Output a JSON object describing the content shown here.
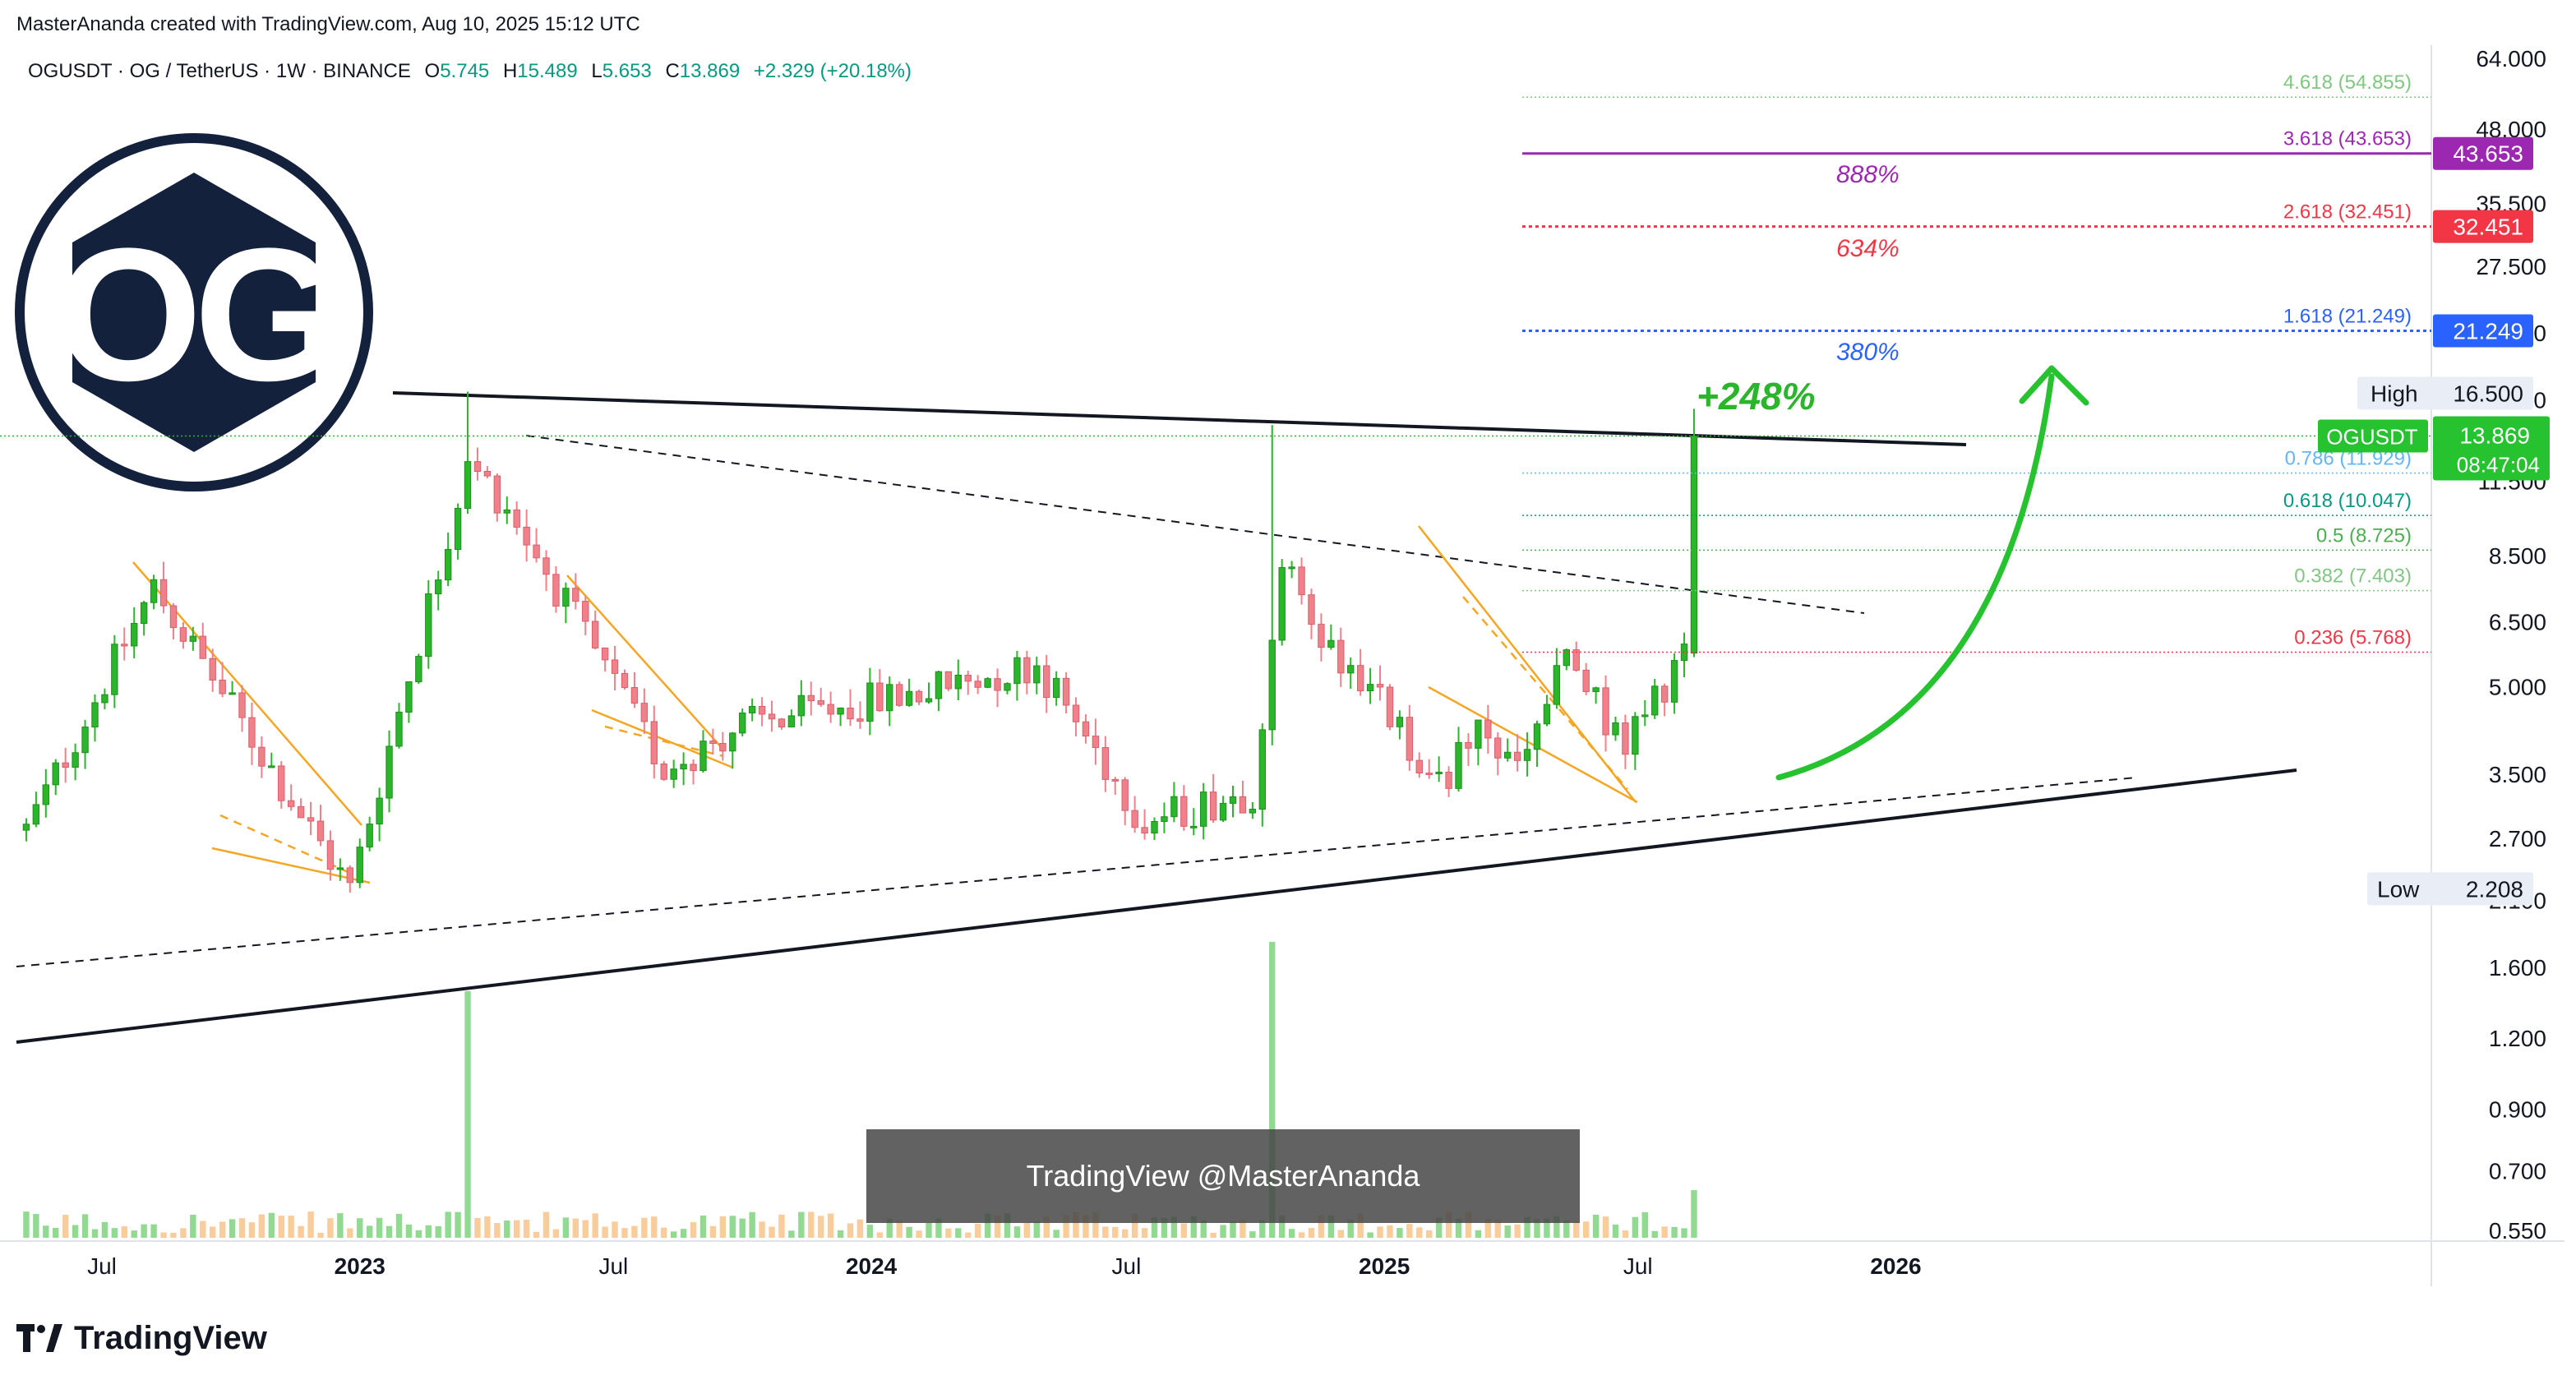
{
  "header": {
    "attribution": "MasterAnanda created with TradingView.com, Aug 10, 2025 15:12 UTC"
  },
  "legend": {
    "symbol_desc": "OGUSDT · OG / TetherUS · 1W · BINANCE",
    "o_label": "O",
    "o_value": "5.745",
    "h_label": "H",
    "h_value": "15.489",
    "l_label": "L",
    "l_value": "5.653",
    "c_label": "C",
    "c_value": "13.869",
    "change": "+2.329 (+20.18%)"
  },
  "logo": {
    "text": "OG"
  },
  "watermark": "TradingView @MasterAnanda",
  "footer": {
    "brand": "TradingView"
  },
  "colors": {
    "up": "#2bb52b",
    "down": "#f0808a",
    "vol_up": "#7fd27f",
    "vol_down": "#f7c48a",
    "purple": "#9c27b0",
    "red": "#f23645",
    "blue": "#2962ff",
    "green": "#089981",
    "orange": "#f5a623",
    "black": "#131722"
  },
  "chart_data": {
    "type": "candlestick",
    "scale": "log",
    "ylim": [
      0.55,
      64
    ],
    "xlim": [
      "2022-05-01",
      "2026-06-28"
    ],
    "y_ticks": [
      "64.000",
      "48.000",
      "35.500",
      "27.500",
      "21.000",
      "16.000",
      "11.500",
      "8.500",
      "6.500",
      "5.000",
      "3.500",
      "2.700",
      "2.100",
      "1.600",
      "1.200",
      "0.900",
      "0.700",
      "0.550"
    ],
    "y_tick_values": [
      64,
      48,
      35.5,
      27.5,
      21,
      16,
      11.5,
      8.5,
      6.5,
      5,
      3.5,
      2.7,
      2.1,
      1.6,
      1.2,
      0.9,
      0.7,
      0.55
    ],
    "x_ticks": [
      {
        "label": "Jul",
        "date": "2022-07-01"
      },
      {
        "label": "2023",
        "date": "2023-01-01"
      },
      {
        "label": "Jul",
        "date": "2023-07-01"
      },
      {
        "label": "2024",
        "date": "2024-01-01"
      },
      {
        "label": "Jul",
        "date": "2024-07-01"
      },
      {
        "label": "2025",
        "date": "2025-01-01"
      },
      {
        "label": "Jul",
        "date": "2025-07-01"
      },
      {
        "label": "2026",
        "date": "2026-01-01"
      }
    ],
    "anchors": [
      {
        "date": "2022-05-08",
        "value": 2.8
      },
      {
        "date": "2022-08-07",
        "value": 7.5
      },
      {
        "date": "2022-12-25",
        "value": 2.2
      },
      {
        "date": "2023-03-19",
        "value": 12.5
      },
      {
        "date": "2023-04-16",
        "value": 10.5
      },
      {
        "date": "2023-08-06",
        "value": 3.6
      },
      {
        "date": "2023-10-01",
        "value": 4.3
      },
      {
        "date": "2024-02-04",
        "value": 4.9
      },
      {
        "date": "2024-04-28",
        "value": 5.5
      },
      {
        "date": "2024-07-14",
        "value": 2.9
      },
      {
        "date": "2024-09-29",
        "value": 3.3
      },
      {
        "date": "2024-10-20",
        "value": 8.2
      },
      {
        "date": "2024-11-17",
        "value": 6.2
      },
      {
        "date": "2025-01-05",
        "value": 4.5
      },
      {
        "date": "2025-02-02",
        "value": 3.3
      },
      {
        "date": "2025-03-09",
        "value": 4.1
      },
      {
        "date": "2025-04-06",
        "value": 3.6
      },
      {
        "date": "2025-05-11",
        "value": 5.6
      },
      {
        "date": "2025-06-22",
        "value": 3.9
      },
      {
        "date": "2025-08-03",
        "value": 5.745
      },
      {
        "date": "2025-08-10",
        "value": 13.869
      }
    ],
    "spikes": [
      {
        "date": "2023-03-19",
        "high": 16.6,
        "low": 2.4
      },
      {
        "date": "2024-10-13",
        "high": 14.5,
        "low": 2.5
      },
      {
        "date": "2025-08-10",
        "high": 15.489,
        "low": 5.653
      }
    ],
    "last_bar": {
      "date": "2025-08-10",
      "open": 5.745,
      "high": 15.489,
      "low": 5.653,
      "close": 13.869
    },
    "fib_levels": [
      {
        "ratio": "4.618",
        "value": 54.855,
        "label": "4.618 (54.855)",
        "color": "#7fc87f"
      },
      {
        "ratio": "3.618",
        "value": 43.653,
        "label": "3.618 (43.653)",
        "color": "#9c27b0"
      },
      {
        "ratio": "2.618",
        "value": 32.451,
        "label": "2.618 (32.451)",
        "color": "#f23645"
      },
      {
        "ratio": "1.618",
        "value": 21.249,
        "label": "1.618 (21.249)",
        "color": "#2962ff"
      },
      {
        "ratio": "0.786",
        "value": 11.929,
        "label": "0.786 (11.929)",
        "color": "#64b5f6"
      },
      {
        "ratio": "0.618",
        "value": 10.047,
        "label": "0.618 (10.047)",
        "color": "#089981"
      },
      {
        "ratio": "0.5",
        "value": 8.725,
        "label": "0.5 (8.725)",
        "color": "#4caf50"
      },
      {
        "ratio": "0.382",
        "value": 7.403,
        "label": "0.382 (7.403)",
        "color": "#81c784"
      },
      {
        "ratio": "0.236",
        "value": 5.768,
        "label": "0.236 (5.768)",
        "color": "#f23645"
      }
    ],
    "price_tags": [
      {
        "value": 43.653,
        "text": "43.653",
        "color": "#9c27b0"
      },
      {
        "value": 32.451,
        "text": "32.451",
        "color": "#f23645"
      },
      {
        "value": 21.249,
        "text": "21.249",
        "color": "#2962ff"
      }
    ],
    "high_tag": {
      "label": "High",
      "value": 16.5,
      "text": "16.500"
    },
    "low_tag": {
      "label": "Low",
      "value": 2.208,
      "text": "2.208"
    },
    "last_price_tag": {
      "symbol": "OGUSDT",
      "value": 13.869,
      "text": "13.869",
      "countdown": "08:47:04"
    },
    "annotations": [
      {
        "text": "+248%",
        "color": "#2bb52b"
      },
      {
        "text": "888%",
        "color": "#9c27b0"
      },
      {
        "text": "634%",
        "color": "#f23645"
      },
      {
        "text": "380%",
        "color": "#2962ff"
      }
    ]
  }
}
